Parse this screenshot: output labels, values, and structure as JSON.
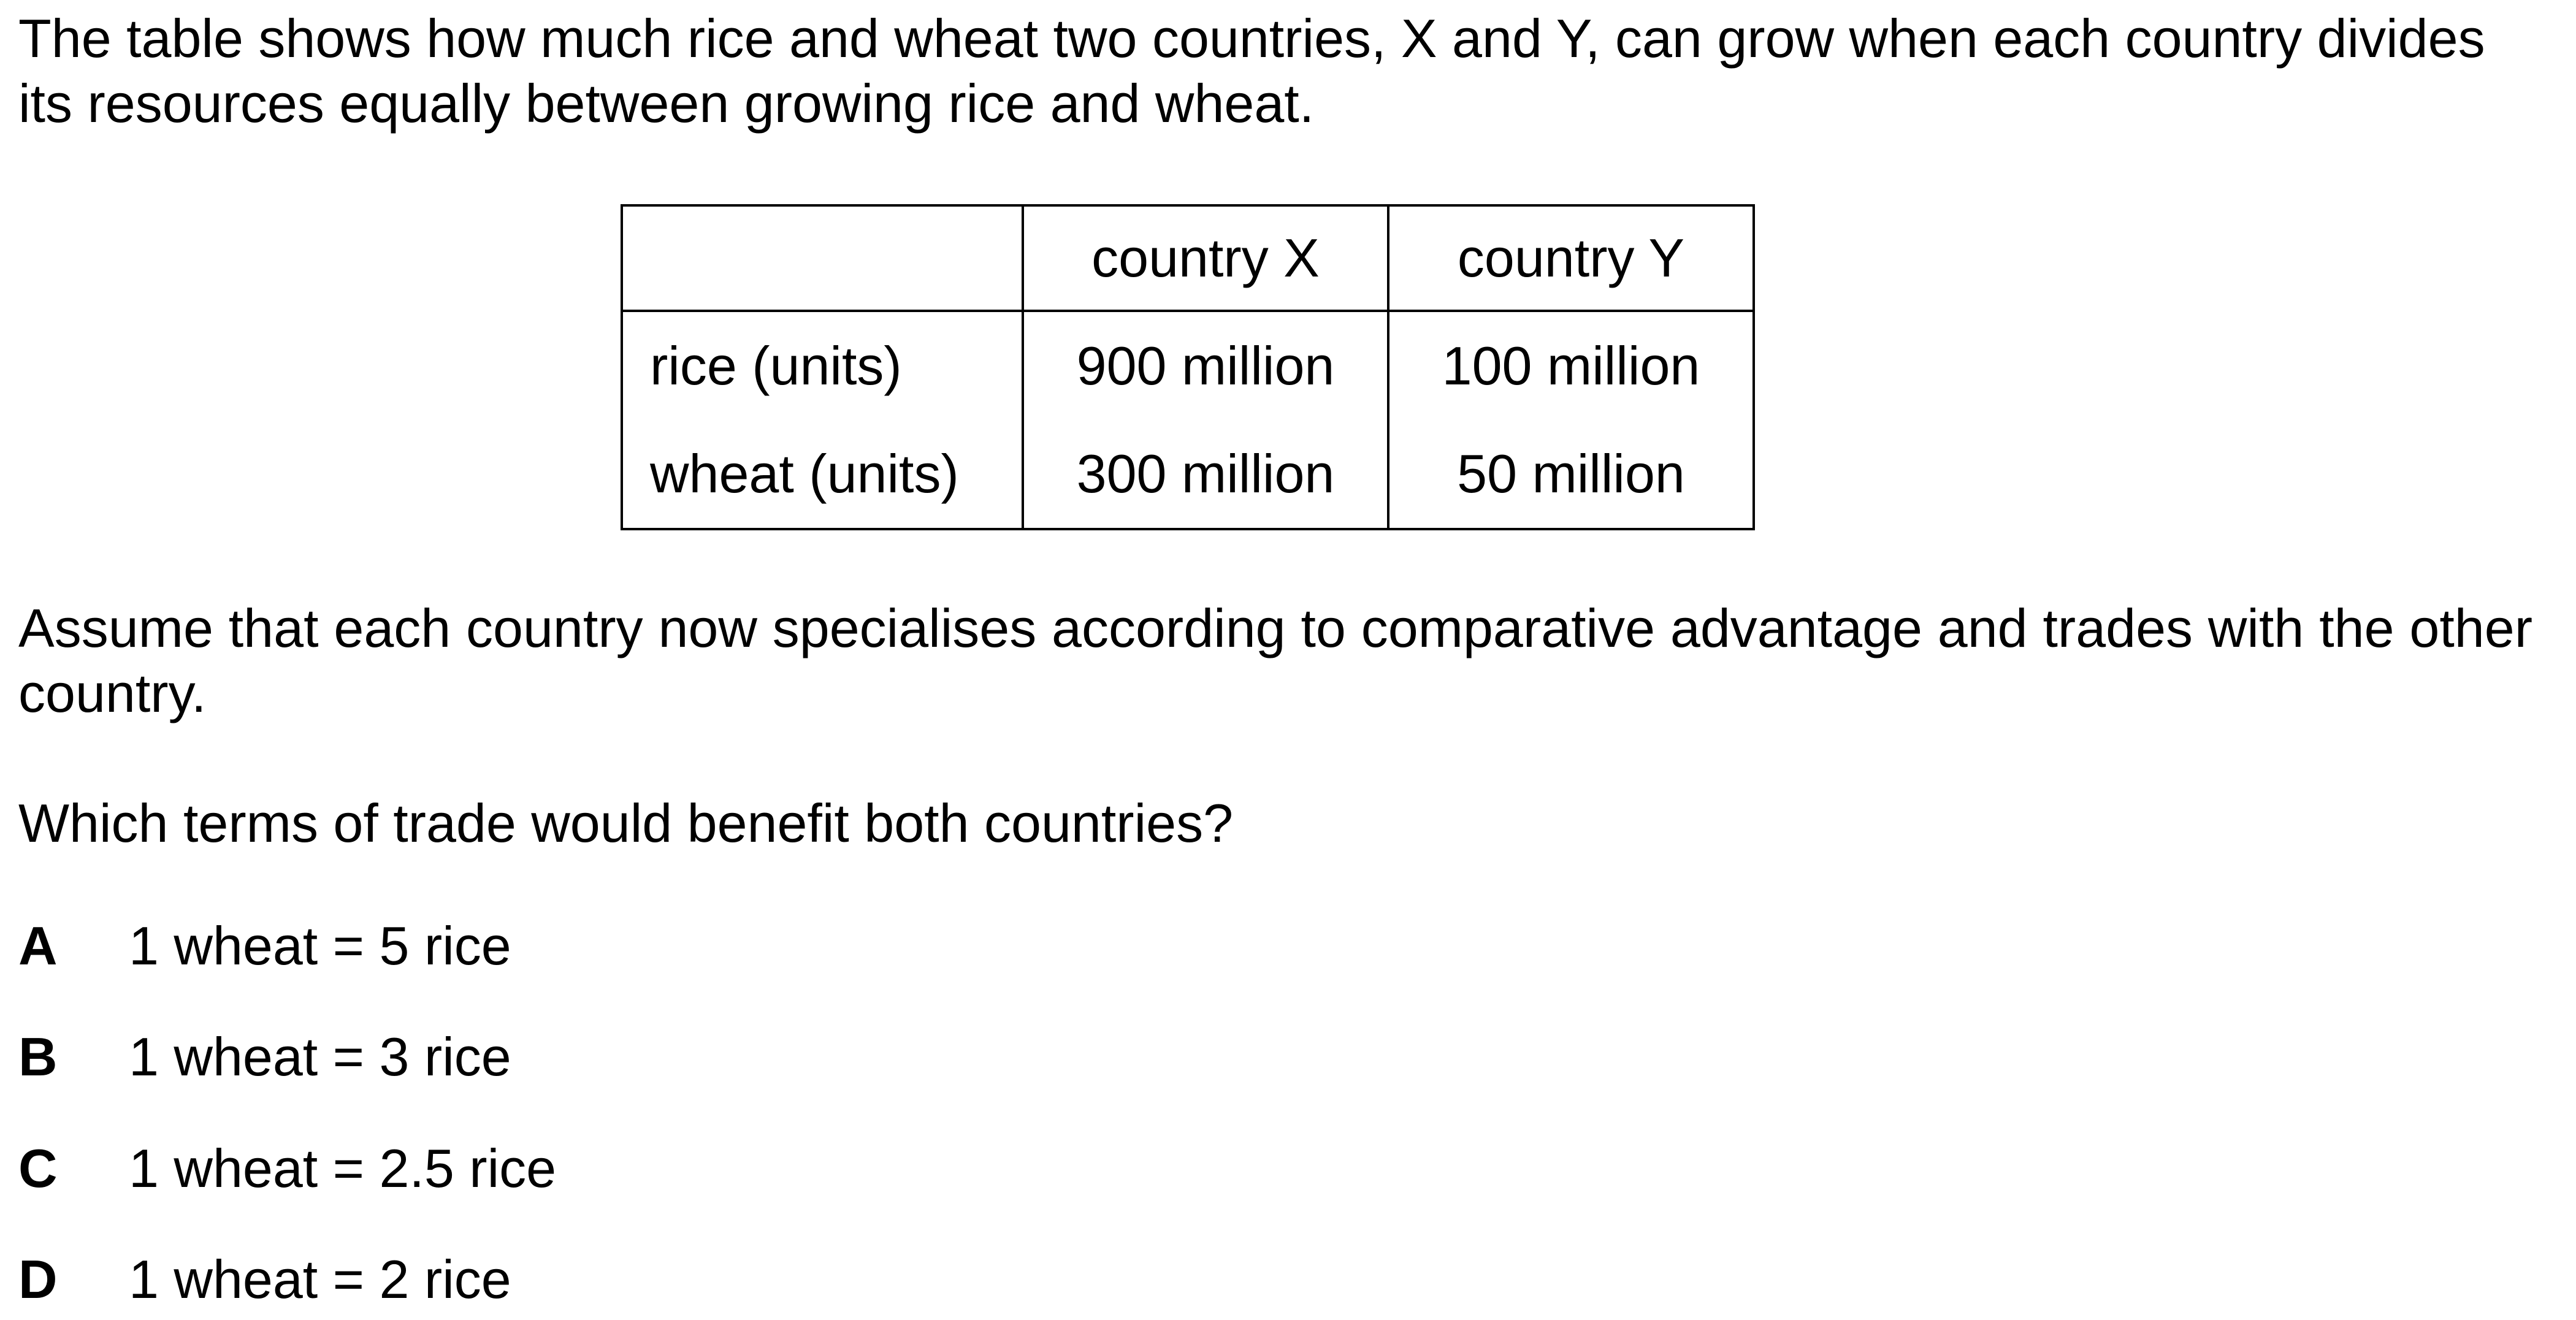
{
  "intro_text": "The table shows how much rice and wheat two countries, X and Y, can grow when each country divides its resources equally between growing rice and wheat.",
  "table": {
    "headers": [
      "",
      "country X",
      "country Y"
    ],
    "rows": [
      {
        "label": "rice (units)",
        "x": "900 million",
        "y": "100 million"
      },
      {
        "label": "wheat (units)",
        "x": "300 million",
        "y": "50 million"
      }
    ]
  },
  "assumption_text": "Assume that each country now specialises according to comparative advantage and trades with the other country.",
  "question_text": "Which terms of trade would benefit both countries?",
  "options": [
    {
      "letter": "A",
      "text": "1 wheat = 5 rice"
    },
    {
      "letter": "B",
      "text": "1 wheat = 3 rice"
    },
    {
      "letter": "C",
      "text": "1 wheat = 2.5 rice"
    },
    {
      "letter": "D",
      "text": "1 wheat = 2 rice"
    }
  ]
}
